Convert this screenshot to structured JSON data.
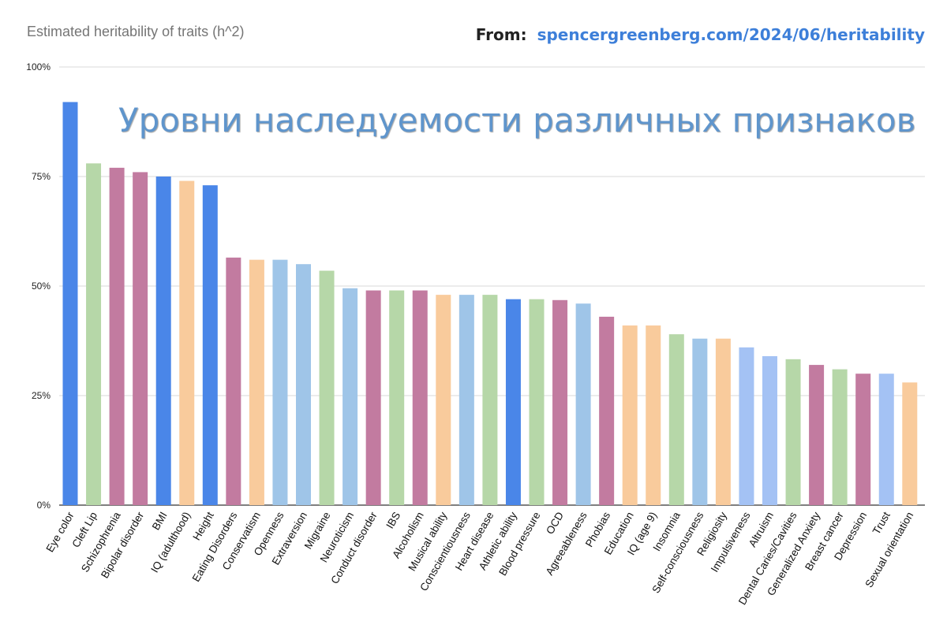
{
  "header": {
    "source_label": "From:",
    "source_url": "spencergreenberg.com/2024/06/heritability",
    "overlay_title": "Уровни наследуемости различных признаков"
  },
  "chart_data": {
    "type": "bar",
    "title": "Estimated heritability of traits (h^2)",
    "xlabel": "",
    "ylabel": "",
    "ylim": [
      0,
      100
    ],
    "yticks": [
      0,
      25,
      50,
      75,
      100
    ],
    "ytick_labels": [
      "0%",
      "25%",
      "50%",
      "75%",
      "100%"
    ],
    "grid": true,
    "legend": "none",
    "categories": [
      "Eye color",
      "Cleft Lip",
      "Schizophrenia",
      "Bipolar disorder",
      "BMI",
      "IQ (adulthood)",
      "Height",
      "Eating Disorders",
      "Conservatism",
      "Openness",
      "Extraversion",
      "Migraine",
      "Neuroticism",
      "Conduct disorder",
      "IBS",
      "Alcoholism",
      "Musical ability",
      "Conscientiousness",
      "Heart disease",
      "Athletic ability",
      "Blood pressure",
      "OCD",
      "Agreeableness",
      "Phobias",
      "Education",
      "IQ (age 9)",
      "Insomnia",
      "Self-consciousness",
      "Religiosity",
      "Impulsiveness",
      "Altruism",
      "Dental Caries/Cavities",
      "Generalized Anxiety",
      "Breast cancer",
      "Depression",
      "Trust",
      "Sexual orientation"
    ],
    "values": [
      92,
      78,
      77,
      76,
      75,
      74,
      73,
      56.5,
      56,
      56,
      55,
      53.5,
      49.5,
      49,
      49,
      49,
      48,
      48,
      48,
      47,
      47,
      46.8,
      46,
      43,
      41,
      41,
      39,
      38,
      38,
      36,
      34,
      33.3,
      32,
      31,
      30,
      30,
      28
    ],
    "colors": [
      "#4a86e8",
      "#b6d7a8",
      "#c27ba0",
      "#c27ba0",
      "#4a86e8",
      "#f9cb9c",
      "#4a86e8",
      "#c27ba0",
      "#f9cb9c",
      "#9fc5e8",
      "#9fc5e8",
      "#b6d7a8",
      "#9fc5e8",
      "#c27ba0",
      "#b6d7a8",
      "#c27ba0",
      "#f9cb9c",
      "#9fc5e8",
      "#b6d7a8",
      "#4a86e8",
      "#b6d7a8",
      "#c27ba0",
      "#9fc5e8",
      "#c27ba0",
      "#f9cb9c",
      "#f9cb9c",
      "#b6d7a8",
      "#9fc5e8",
      "#f9cb9c",
      "#a4c2f4",
      "#a4c2f4",
      "#b6d7a8",
      "#c27ba0",
      "#b6d7a8",
      "#c27ba0",
      "#a4c2f4",
      "#f9cb9c"
    ]
  }
}
